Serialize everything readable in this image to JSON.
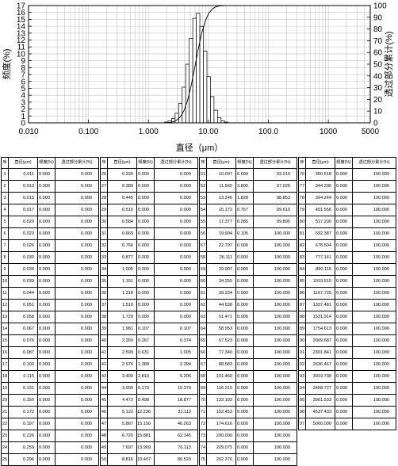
{
  "chart_data": {
    "type": "bar",
    "xscale": "log",
    "xlim": [
      0.01,
      5000
    ],
    "ylim_left": [
      0,
      17
    ],
    "ylim_right": [
      0,
      100
    ],
    "xticks": [
      "0.010",
      "0.100",
      "1.000",
      "10.00",
      "100.0",
      "1000",
      "5000"
    ],
    "yticks_left": [
      "0",
      "1",
      "2",
      "3",
      "4",
      "5",
      "6",
      "7",
      "8",
      "9",
      "10",
      "11",
      "12",
      "13",
      "14",
      "15",
      "16",
      "17"
    ],
    "yticks_right": [
      "0",
      "10",
      "20",
      "30",
      "40",
      "50",
      "60",
      "70",
      "80",
      "90",
      "100"
    ],
    "xlabel": "直径（μm）",
    "ylabel_left": "频度(%)",
    "ylabel_right": "透过部分累计(%)",
    "grid": true,
    "series": [
      {
        "name": "频度(%)",
        "kind": "bar",
        "x": [
          1.981,
          2.269,
          2.599,
          2.976,
          3.409,
          3.905,
          4.472,
          5.122,
          5.867,
          6.72,
          7.697,
          8.816,
          10.097,
          11.565,
          13.246,
          15.172,
          17.377,
          19.904
        ],
        "values": [
          0.107,
          0.267,
          0.631,
          1.389,
          2.813,
          5.173,
          8.498,
          12.236,
          15.15,
          15.881,
          13.969,
          10.407,
          6.699,
          3.806,
          1.828,
          0.757,
          0.285,
          0.105
        ]
      },
      {
        "name": "透过部分累计(%)",
        "kind": "line",
        "x": [
          1.729,
          1.981,
          2.269,
          2.599,
          2.976,
          3.409,
          3.905,
          4.472,
          5.122,
          5.867,
          6.72,
          7.697,
          8.816,
          10.097,
          11.565,
          13.246,
          15.172,
          17.377,
          19.904,
          22.797
        ],
        "values": [
          0,
          0.107,
          0.374,
          1.005,
          2.394,
          5.206,
          10.379,
          18.877,
          31.113,
          46.263,
          62.145,
          76.113,
          86.52,
          93.219,
          97.025,
          98.853,
          99.61,
          99.895,
          100,
          100
        ]
      }
    ]
  },
  "table": {
    "headers": [
      "序",
      "直径(μm)",
      "频度(%)",
      "透过部分累计(%)"
    ],
    "rows": [
      [
        "1",
        "0.011",
        "0.000",
        "0.000"
      ],
      [
        "2",
        "0.013",
        "0.000",
        "0.000"
      ],
      [
        "3",
        "0.015",
        "0.000",
        "0.000"
      ],
      [
        "4",
        "0.017",
        "0.000",
        "0.000"
      ],
      [
        "5",
        "0.020",
        "0.000",
        "0.000"
      ],
      [
        "6",
        "0.023",
        "0.000",
        "0.000"
      ],
      [
        "7",
        "0.026",
        "0.000",
        "0.000"
      ],
      [
        "8",
        "0.030",
        "0.000",
        "0.000"
      ],
      [
        "9",
        "0.034",
        "0.000",
        "0.000"
      ],
      [
        "10",
        "0.039",
        "0.000",
        "0.000"
      ],
      [
        "11",
        "0.044",
        "0.000",
        "0.000"
      ],
      [
        "12",
        "0.051",
        "0.000",
        "0.000"
      ],
      [
        "13",
        "0.058",
        "0.000",
        "0.000"
      ],
      [
        "14",
        "0.067",
        "0.000",
        "0.000"
      ],
      [
        "15",
        "0.076",
        "0.000",
        "0.000"
      ],
      [
        "16",
        "0.087",
        "0.000",
        "0.000"
      ],
      [
        "17",
        "0.100",
        "0.000",
        "0.000"
      ],
      [
        "18",
        "0.115",
        "0.000",
        "0.000"
      ],
      [
        "19",
        "0.131",
        "0.000",
        "0.000"
      ],
      [
        "20",
        "0.150",
        "0.000",
        "0.000"
      ],
      [
        "21",
        "0.172",
        "0.000",
        "0.000"
      ],
      [
        "22",
        "0.197",
        "0.000",
        "0.000"
      ],
      [
        "23",
        "0.226",
        "0.000",
        "0.000"
      ],
      [
        "24",
        "0.259",
        "0.000",
        "0.000"
      ],
      [
        "25",
        "0.296",
        "0.000",
        "0.000"
      ],
      [
        "26",
        "0.339",
        "0.000",
        "0.000"
      ],
      [
        "27",
        "0.389",
        "0.000",
        "0.000"
      ],
      [
        "28",
        "0.445",
        "0.000",
        "0.000"
      ],
      [
        "29",
        "0.510",
        "0.000",
        "0.000"
      ],
      [
        "30",
        "0.584",
        "0.000",
        "0.000"
      ],
      [
        "31",
        "0.669",
        "0.000",
        "0.000"
      ],
      [
        "32",
        "0.766",
        "0.000",
        "0.000"
      ],
      [
        "33",
        "0.877",
        "0.000",
        "0.000"
      ],
      [
        "34",
        "1.005",
        "0.000",
        "0.000"
      ],
      [
        "35",
        "1.151",
        "0.000",
        "0.000"
      ],
      [
        "36",
        "1.318",
        "0.000",
        "0.000"
      ],
      [
        "37",
        "1.510",
        "0.000",
        "0.000"
      ],
      [
        "38",
        "1.729",
        "0.000",
        "0.000"
      ],
      [
        "39",
        "1.981",
        "0.107",
        "0.107"
      ],
      [
        "40",
        "2.269",
        "0.267",
        "0.374"
      ],
      [
        "41",
        "2.599",
        "0.631",
        "1.005"
      ],
      [
        "42",
        "2.976",
        "1.389",
        "2.394"
      ],
      [
        "43",
        "3.409",
        "2.813",
        "5.206"
      ],
      [
        "44",
        "3.905",
        "5.173",
        "10.379"
      ],
      [
        "45",
        "4.472",
        "8.498",
        "18.877"
      ],
      [
        "46",
        "5.122",
        "12.236",
        "31.113"
      ],
      [
        "47",
        "5.867",
        "15.150",
        "46.263"
      ],
      [
        "48",
        "6.720",
        "15.881",
        "62.145"
      ],
      [
        "49",
        "7.697",
        "13.969",
        "76.113"
      ],
      [
        "50",
        "8.816",
        "10.407",
        "86.520"
      ],
      [
        "51",
        "10.097",
        "6.699",
        "93.219"
      ],
      [
        "52",
        "11.565",
        "3.806",
        "97.025"
      ],
      [
        "53",
        "13.246",
        "1.828",
        "98.853"
      ],
      [
        "54",
        "15.172",
        "0.757",
        "99.610"
      ],
      [
        "55",
        "17.377",
        "0.285",
        "99.895"
      ],
      [
        "56",
        "19.904",
        "0.105",
        "100.000"
      ],
      [
        "57",
        "22.797",
        "0.000",
        "100.000"
      ],
      [
        "58",
        "26.111",
        "0.000",
        "100.000"
      ],
      [
        "59",
        "29.907",
        "0.000",
        "100.000"
      ],
      [
        "60",
        "34.255",
        "0.000",
        "100.000"
      ],
      [
        "61",
        "39.234",
        "0.000",
        "100.000"
      ],
      [
        "62",
        "44.938",
        "0.000",
        "100.000"
      ],
      [
        "63",
        "51.471",
        "0.000",
        "100.000"
      ],
      [
        "64",
        "58.953",
        "0.000",
        "100.000"
      ],
      [
        "65",
        "67.523",
        "0.000",
        "100.000"
      ],
      [
        "66",
        "77.340",
        "0.000",
        "100.000"
      ],
      [
        "67",
        "88.583",
        "0.000",
        "100.000"
      ],
      [
        "68",
        "101.460",
        "0.000",
        "100.000"
      ],
      [
        "69",
        "116.210",
        "0.000",
        "100.000"
      ],
      [
        "70",
        "133.103",
        "0.000",
        "100.000"
      ],
      [
        "71",
        "152.453",
        "0.000",
        "100.000"
      ],
      [
        "72",
        "174.616",
        "0.000",
        "100.000"
      ],
      [
        "73",
        "200.000",
        "0.000",
        "100.000"
      ],
      [
        "74",
        "229.075",
        "0.000",
        "100.000"
      ],
      [
        "75",
        "262.376",
        "0.000",
        "100.000"
      ],
      [
        "76",
        "300.518",
        "0.000",
        "100.000"
      ],
      [
        "77",
        "344.206",
        "0.000",
        "100.000"
      ],
      [
        "78",
        "394.244",
        "0.000",
        "100.000"
      ],
      [
        "79",
        "451.556",
        "0.000",
        "100.000"
      ],
      [
        "80",
        "517.200",
        "0.000",
        "100.000"
      ],
      [
        "81",
        "592.387",
        "0.000",
        "100.000"
      ],
      [
        "82",
        "678.504",
        "0.000",
        "100.000"
      ],
      [
        "83",
        "777.141",
        "0.000",
        "100.000"
      ],
      [
        "84",
        "890.116",
        "0.000",
        "100.000"
      ],
      [
        "85",
        "1019.515",
        "0.000",
        "100.000"
      ],
      [
        "86",
        "1167.725",
        "0.000",
        "100.000"
      ],
      [
        "87",
        "1337.481",
        "0.000",
        "100.000"
      ],
      [
        "88",
        "1531.914",
        "0.000",
        "100.000"
      ],
      [
        "89",
        "1754.613",
        "0.000",
        "100.000"
      ],
      [
        "90",
        "2009.687",
        "0.000",
        "100.000"
      ],
      [
        "91",
        "2301.841",
        "0.000",
        "100.000"
      ],
      [
        "92",
        "2636.467",
        "0.000",
        "100.000"
      ],
      [
        "93",
        "3019.738",
        "0.000",
        "100.000"
      ],
      [
        "94",
        "3458.727",
        "0.000",
        "100.000"
      ],
      [
        "95",
        "3961.533",
        "0.000",
        "100.000"
      ],
      [
        "96",
        "4537.433",
        "0.000",
        "100.000"
      ],
      [
        "97",
        "5000.000",
        "0.000",
        "100.000"
      ]
    ]
  }
}
